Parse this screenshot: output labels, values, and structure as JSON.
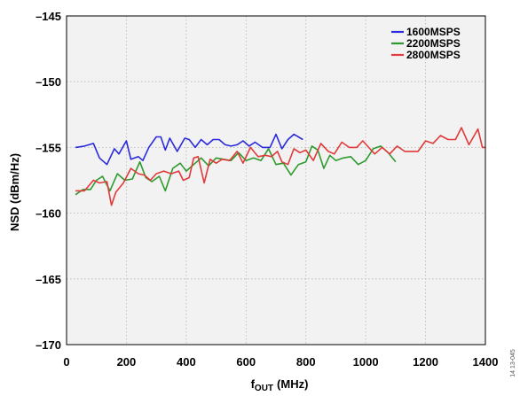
{
  "chart_data": {
    "type": "line",
    "xlabel": "f",
    "xlabel_sub": "OUT",
    "xlabel_unit": "(MHz)",
    "ylabel": "NSD (dBm/Hz)",
    "xlim": [
      0,
      1400
    ],
    "ylim": [
      -170,
      -145
    ],
    "xticks": [
      0,
      200,
      400,
      600,
      800,
      1000,
      1200,
      1400
    ],
    "yticks": [
      -145,
      -150,
      -155,
      -160,
      -165,
      -170
    ],
    "xtick_labels": [
      "0",
      "200",
      "400",
      "600",
      "800",
      "1000",
      "1200",
      "1400"
    ],
    "ytick_labels": [
      "–145",
      "–150",
      "–155",
      "–160",
      "–165",
      "–170"
    ],
    "grid": true,
    "legend_position": "top-right",
    "side_note": "14 13-045",
    "series": [
      {
        "name": "1600MSPS",
        "color": "#2a2adc",
        "x": [
          30,
          60,
          90,
          110,
          135,
          160,
          175,
          200,
          215,
          240,
          255,
          275,
          300,
          315,
          330,
          345,
          370,
          395,
          410,
          430,
          450,
          470,
          490,
          510,
          530,
          550,
          570,
          590,
          610,
          630,
          655,
          680,
          700,
          720,
          740,
          760,
          790
        ],
        "y": [
          -155.0,
          -154.9,
          -154.7,
          -155.8,
          -156.3,
          -155.1,
          -155.5,
          -154.5,
          -155.9,
          -155.7,
          -156.0,
          -155.0,
          -154.2,
          -154.2,
          -155.2,
          -154.3,
          -155.3,
          -154.3,
          -154.4,
          -155.0,
          -154.4,
          -154.8,
          -154.4,
          -154.4,
          -154.8,
          -154.9,
          -154.8,
          -154.5,
          -154.9,
          -154.6,
          -155.0,
          -155.0,
          -154.0,
          -155.1,
          -154.4,
          -154.0,
          -154.4
        ]
      },
      {
        "name": "2200MSPS",
        "color": "#2e9a2e",
        "x": [
          30,
          55,
          80,
          100,
          120,
          145,
          170,
          195,
          220,
          245,
          265,
          285,
          310,
          330,
          355,
          380,
          400,
          425,
          450,
          475,
          500,
          525,
          550,
          575,
          600,
          625,
          650,
          675,
          700,
          725,
          750,
          775,
          800,
          820,
          840,
          860,
          880,
          900,
          925,
          950,
          975,
          1000,
          1025,
          1050,
          1075,
          1100
        ],
        "y": [
          -158.6,
          -158.2,
          -158.2,
          -157.5,
          -157.2,
          -158.3,
          -157.0,
          -157.5,
          -157.4,
          -156.1,
          -157.3,
          -157.6,
          -157.2,
          -158.3,
          -156.6,
          -156.2,
          -156.8,
          -156.3,
          -155.8,
          -156.4,
          -155.8,
          -155.9,
          -156.0,
          -155.4,
          -156.0,
          -155.8,
          -156.0,
          -155.1,
          -156.3,
          -156.2,
          -157.1,
          -156.3,
          -156.1,
          -154.9,
          -155.2,
          -156.6,
          -155.6,
          -156.0,
          -155.8,
          -155.7,
          -156.3,
          -156.0,
          -155.1,
          -154.9,
          -155.4,
          -156.1
        ]
      },
      {
        "name": "2800MSPS",
        "color": "#e03a3a",
        "x": [
          30,
          60,
          90,
          110,
          135,
          150,
          165,
          190,
          215,
          240,
          260,
          280,
          300,
          325,
          350,
          375,
          390,
          410,
          425,
          440,
          460,
          480,
          500,
          520,
          545,
          570,
          590,
          615,
          640,
          665,
          685,
          705,
          720,
          740,
          760,
          780,
          800,
          825,
          850,
          875,
          895,
          920,
          945,
          970,
          990,
          1010,
          1030,
          1055,
          1080,
          1105,
          1130,
          1150,
          1175,
          1200,
          1225,
          1250,
          1275,
          1300,
          1320,
          1345,
          1375,
          1390,
          1400
        ],
        "y": [
          -158.3,
          -158.3,
          -157.5,
          -157.7,
          -157.6,
          -159.4,
          -158.4,
          -157.7,
          -156.6,
          -157.0,
          -157.1,
          -157.5,
          -157.0,
          -156.8,
          -157.0,
          -156.8,
          -157.5,
          -157.3,
          -155.8,
          -155.7,
          -157.7,
          -155.9,
          -156.2,
          -155.9,
          -156.0,
          -155.3,
          -156.2,
          -155.0,
          -155.7,
          -155.6,
          -155.7,
          -155.3,
          -156.1,
          -156.3,
          -155.1,
          -155.4,
          -155.2,
          -156.0,
          -154.7,
          -155.3,
          -155.5,
          -154.6,
          -155.0,
          -155.0,
          -154.5,
          -155.0,
          -155.5,
          -155.0,
          -155.5,
          -154.9,
          -155.3,
          -155.3,
          -155.3,
          -154.5,
          -154.7,
          -154.1,
          -154.4,
          -154.4,
          -153.5,
          -154.8,
          -153.6,
          -155.0,
          -155.0
        ]
      }
    ]
  }
}
